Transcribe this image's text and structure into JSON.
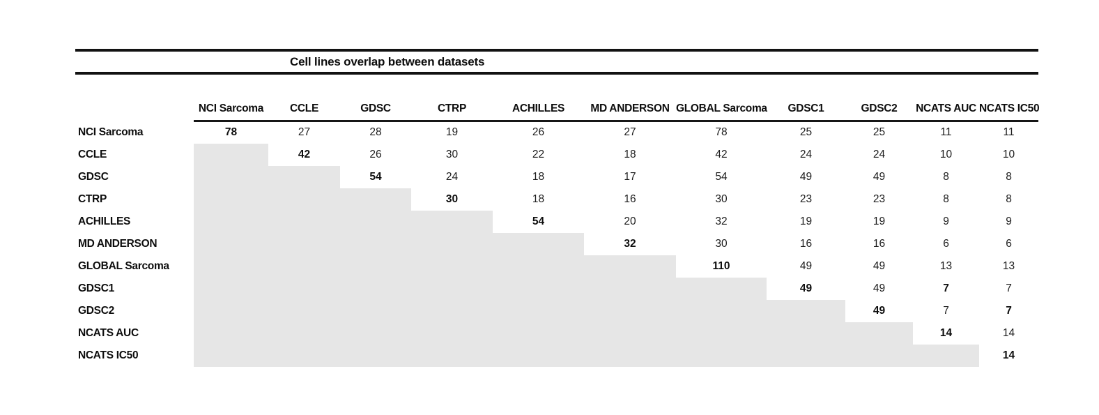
{
  "title": "Cell lines overlap between datasets",
  "colors": {
    "shaded_cell": "#e6e6e6",
    "rule": "#121212",
    "text": "#151515"
  },
  "chart_data": {
    "type": "table",
    "title": "Cell lines overlap between datasets",
    "columns": [
      "NCI Sarcoma",
      "CCLE",
      "GDSC",
      "CTRP",
      "ACHILLES",
      "MD ANDERSON",
      "GLOBAL Sarcoma",
      "GDSC1",
      "GDSC2",
      "NCATS AUC",
      "NCATS IC50"
    ],
    "rows": [
      {
        "label": "NCI Sarcoma",
        "cells": [
          {
            "v": "78",
            "bold": true
          },
          {
            "v": "27"
          },
          {
            "v": "28"
          },
          {
            "v": "19"
          },
          {
            "v": "26"
          },
          {
            "v": "27"
          },
          {
            "v": "78"
          },
          {
            "v": "25"
          },
          {
            "v": "25"
          },
          {
            "v": "11"
          },
          {
            "v": "11"
          }
        ]
      },
      {
        "label": "CCLE",
        "cells": [
          null,
          {
            "v": "42",
            "bold": true
          },
          {
            "v": "26"
          },
          {
            "v": "30"
          },
          {
            "v": "22"
          },
          {
            "v": "18"
          },
          {
            "v": "42"
          },
          {
            "v": "24"
          },
          {
            "v": "24"
          },
          {
            "v": "10"
          },
          {
            "v": "10"
          }
        ]
      },
      {
        "label": "GDSC",
        "cells": [
          null,
          null,
          {
            "v": "54",
            "bold": true
          },
          {
            "v": "24"
          },
          {
            "v": "18"
          },
          {
            "v": "17"
          },
          {
            "v": "54"
          },
          {
            "v": "49"
          },
          {
            "v": "49"
          },
          {
            "v": "8"
          },
          {
            "v": "8"
          }
        ]
      },
      {
        "label": "CTRP",
        "cells": [
          null,
          null,
          null,
          {
            "v": "30",
            "bold": true
          },
          {
            "v": "18"
          },
          {
            "v": "16"
          },
          {
            "v": "30"
          },
          {
            "v": "23"
          },
          {
            "v": "23"
          },
          {
            "v": "8"
          },
          {
            "v": "8"
          }
        ]
      },
      {
        "label": "ACHILLES",
        "cells": [
          null,
          null,
          null,
          null,
          {
            "v": "54",
            "bold": true
          },
          {
            "v": "20"
          },
          {
            "v": "32"
          },
          {
            "v": "19"
          },
          {
            "v": "19"
          },
          {
            "v": "9"
          },
          {
            "v": "9"
          }
        ]
      },
      {
        "label": "MD ANDERSON",
        "cells": [
          null,
          null,
          null,
          null,
          null,
          {
            "v": "32",
            "bold": true
          },
          {
            "v": "30"
          },
          {
            "v": "16"
          },
          {
            "v": "16"
          },
          {
            "v": "6"
          },
          {
            "v": "6"
          }
        ]
      },
      {
        "label": "GLOBAL Sarcoma",
        "cells": [
          null,
          null,
          null,
          null,
          null,
          null,
          {
            "v": "110",
            "bold": true
          },
          {
            "v": "49"
          },
          {
            "v": "49"
          },
          {
            "v": "13"
          },
          {
            "v": "13"
          }
        ]
      },
      {
        "label": "GDSC1",
        "cells": [
          null,
          null,
          null,
          null,
          null,
          null,
          null,
          {
            "v": "49",
            "bold": true
          },
          {
            "v": "49"
          },
          {
            "v": "7",
            "bold": true
          },
          {
            "v": "7"
          }
        ]
      },
      {
        "label": "GDSC2",
        "cells": [
          null,
          null,
          null,
          null,
          null,
          null,
          null,
          null,
          {
            "v": "49",
            "bold": true
          },
          {
            "v": "7"
          },
          {
            "v": "7",
            "bold": true
          }
        ]
      },
      {
        "label": "NCATS AUC",
        "cells": [
          null,
          null,
          null,
          null,
          null,
          null,
          null,
          null,
          null,
          {
            "v": "14",
            "bold": true
          },
          {
            "v": "14"
          }
        ]
      },
      {
        "label": "NCATS IC50",
        "cells": [
          null,
          null,
          null,
          null,
          null,
          null,
          null,
          null,
          null,
          null,
          {
            "v": "14",
            "bold": true
          }
        ]
      }
    ]
  }
}
